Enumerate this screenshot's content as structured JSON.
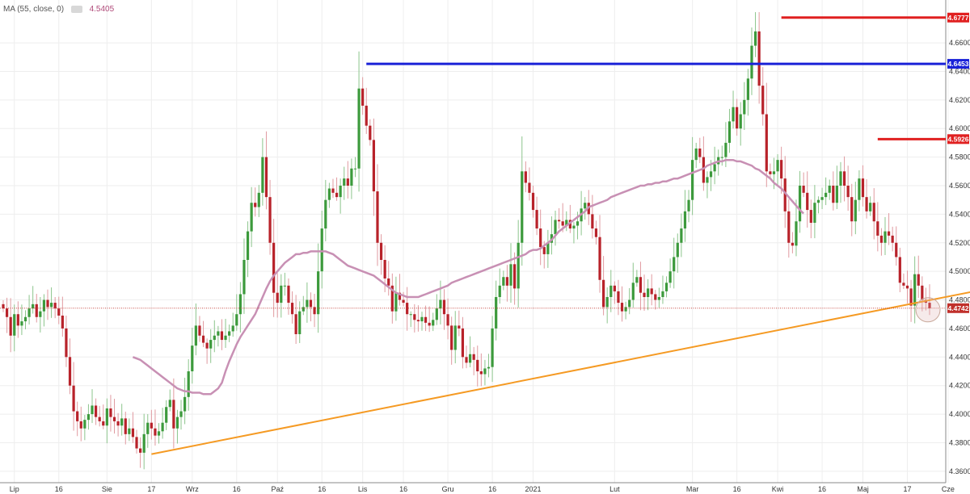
{
  "legend": {
    "indicator": "MA (55, close, 0)",
    "value": "4.5405"
  },
  "chart_data": {
    "type": "candlestick",
    "ylim": [
      4.352,
      4.69
    ],
    "y_ticks": [
      4.36,
      4.38,
      4.4,
      4.42,
      4.44,
      4.46,
      4.48,
      4.5,
      4.52,
      4.54,
      4.56,
      4.58,
      4.6,
      4.62,
      4.64,
      4.66
    ],
    "y_tick_labels": [
      "4.3600",
      "4.3800",
      "4.4000",
      "4.4200",
      "4.4400",
      "4.4600",
      "4.4800",
      "4.5000",
      "4.5200",
      "4.5400",
      "4.5600",
      "4.5800",
      "4.6000",
      "4.6200",
      "4.6400",
      "4.6600"
    ],
    "x_ticks": [
      {
        "label": "Lip",
        "i": 3
      },
      {
        "label": "16",
        "i": 15
      },
      {
        "label": "Sie",
        "i": 28
      },
      {
        "label": "17",
        "i": 40
      },
      {
        "label": "Wrz",
        "i": 51
      },
      {
        "label": "16",
        "i": 63
      },
      {
        "label": "Paź",
        "i": 74
      },
      {
        "label": "16",
        "i": 86
      },
      {
        "label": "Lis",
        "i": 97
      },
      {
        "label": "16",
        "i": 108
      },
      {
        "label": "Gru",
        "i": 120
      },
      {
        "label": "16",
        "i": 132
      },
      {
        "label": "2021",
        "i": 143
      },
      {
        "label": "Lut",
        "i": 165
      },
      {
        "label": "Mar",
        "i": 186
      },
      {
        "label": "16",
        "i": 198
      },
      {
        "label": "Kwi",
        "i": 209
      },
      {
        "label": "16",
        "i": 221
      },
      {
        "label": "Maj",
        "i": 232
      },
      {
        "label": "17",
        "i": 244
      },
      {
        "label": "Cze",
        "i": 255
      }
    ],
    "closes": [
      4.474,
      4.468,
      4.455,
      4.47,
      4.462,
      4.465,
      4.468,
      4.474,
      4.477,
      4.468,
      4.472,
      4.48,
      4.475,
      4.478,
      4.474,
      4.469,
      4.46,
      4.44,
      4.42,
      4.402,
      4.395,
      4.39,
      4.396,
      4.4,
      4.406,
      4.398,
      4.395,
      4.392,
      4.404,
      4.398,
      4.395,
      4.392,
      4.397,
      4.386,
      4.39,
      4.384,
      4.376,
      4.373,
      4.386,
      4.394,
      4.39,
      4.385,
      4.388,
      4.394,
      4.405,
      4.41,
      4.39,
      4.398,
      4.402,
      4.412,
      4.43,
      4.448,
      4.462,
      4.455,
      4.45,
      4.446,
      4.452,
      4.455,
      4.458,
      4.452,
      4.455,
      4.458,
      4.462,
      4.47,
      4.484,
      4.508,
      4.528,
      4.548,
      4.545,
      4.555,
      4.58,
      4.552,
      4.52,
      4.485,
      4.478,
      4.49,
      4.49,
      4.478,
      4.47,
      4.456,
      4.472,
      4.475,
      4.48,
      4.475,
      4.47,
      4.5,
      4.53,
      4.55,
      4.558,
      4.555,
      4.552,
      4.56,
      4.565,
      4.56,
      4.572,
      4.572,
      4.628,
      4.616,
      4.602,
      4.592,
      4.556,
      4.52,
      4.508,
      4.495,
      4.49,
      4.472,
      4.485,
      4.48,
      4.478,
      4.47,
      4.47,
      4.466,
      4.465,
      4.468,
      4.464,
      4.462,
      4.466,
      4.474,
      4.48,
      4.47,
      4.462,
      4.445,
      4.462,
      4.46,
      4.44,
      4.436,
      4.442,
      4.438,
      4.43,
      4.428,
      4.432,
      4.433,
      4.46,
      4.482,
      4.49,
      4.496,
      4.49,
      4.505,
      4.488,
      4.52,
      4.57,
      4.562,
      4.555,
      4.543,
      4.53,
      4.517,
      4.512,
      4.52,
      4.526,
      4.536,
      4.535,
      4.532,
      4.536,
      4.53,
      4.532,
      4.535,
      4.544,
      4.548,
      4.54,
      4.53,
      4.524,
      4.494,
      4.475,
      4.482,
      4.49,
      4.486,
      4.478,
      4.472,
      4.475,
      4.48,
      4.492,
      4.496,
      4.485,
      4.482,
      4.488,
      4.484,
      4.48,
      4.482,
      4.486,
      4.492,
      4.5,
      4.51,
      4.52,
      4.53,
      4.542,
      4.55,
      4.578,
      4.586,
      4.58,
      4.562,
      4.566,
      4.57,
      4.575,
      4.58,
      4.58,
      4.59,
      4.605,
      4.615,
      4.6,
      4.61,
      4.62,
      4.635,
      4.658,
      4.668,
      4.63,
      4.61,
      4.57,
      4.568,
      4.57,
      4.578,
      4.565,
      4.542,
      4.52,
      4.518,
      4.535,
      4.56,
      4.555,
      4.543,
      4.534,
      4.548,
      4.55,
      4.552,
      4.555,
      4.56,
      4.548,
      4.56,
      4.57,
      4.56,
      4.552,
      4.535,
      4.55,
      4.565,
      4.552,
      4.542,
      4.548,
      4.535,
      4.525,
      4.52,
      4.528,
      4.525,
      4.52,
      4.51,
      4.492,
      4.49,
      4.488,
      4.476,
      4.498,
      4.49,
      4.48,
      4.478,
      4.4742
    ],
    "ma_start": 35,
    "ma": [
      4.44,
      4.439,
      4.438,
      4.436,
      4.434,
      4.432,
      4.43,
      4.428,
      4.426,
      4.424,
      4.422,
      4.42,
      4.418,
      4.417,
      4.416,
      4.416,
      4.415,
      4.415,
      4.415,
      4.414,
      4.414,
      4.414,
      4.416,
      4.418,
      4.422,
      4.43,
      4.437,
      4.443,
      4.449,
      4.454,
      4.458,
      4.462,
      4.466,
      4.47,
      4.476,
      4.482,
      4.488,
      4.493,
      4.497,
      4.5,
      4.503,
      4.506,
      4.508,
      4.51,
      4.512,
      4.512,
      4.513,
      4.513,
      4.514,
      4.514,
      4.514,
      4.514,
      4.514,
      4.513,
      4.512,
      4.51,
      4.508,
      4.506,
      4.504,
      4.503,
      4.502,
      4.501,
      4.5,
      4.499,
      4.498,
      4.497,
      4.495,
      4.493,
      4.491,
      4.489,
      4.487,
      4.485,
      4.484,
      4.483,
      4.482,
      4.482,
      4.482,
      4.482,
      4.483,
      4.484,
      4.485,
      4.486,
      4.487,
      4.488,
      4.489,
      4.49,
      4.492,
      4.493,
      4.494,
      4.495,
      4.496,
      4.497,
      4.498,
      4.499,
      4.5,
      4.501,
      4.502,
      4.503,
      4.504,
      4.505,
      4.506,
      4.507,
      4.508,
      4.509,
      4.51,
      4.511,
      4.512,
      4.514,
      4.515,
      4.515,
      4.516,
      4.518,
      4.52,
      4.522,
      4.525,
      4.528,
      4.53,
      4.532,
      4.534,
      4.536,
      4.538,
      4.54,
      4.542,
      4.545,
      4.546,
      4.547,
      4.548,
      4.549,
      4.55,
      4.552,
      4.553,
      4.554,
      4.555,
      4.556,
      4.557,
      4.558,
      4.559,
      4.56,
      4.56,
      4.561,
      4.561,
      4.562,
      4.562,
      4.563,
      4.563,
      4.564,
      4.565,
      4.565,
      4.566,
      4.567,
      4.568,
      4.569,
      4.57,
      4.571,
      4.572,
      4.574,
      4.575,
      4.576,
      4.577,
      4.577,
      4.578,
      4.578,
      4.578,
      4.577,
      4.577,
      4.576,
      4.575,
      4.574,
      4.572,
      4.571,
      4.569,
      4.567,
      4.565,
      4.562,
      4.56,
      4.558,
      4.555,
      4.552,
      4.549,
      4.546,
      4.543,
      4.5405
    ]
  },
  "levels": [
    {
      "label": "4.6777",
      "value": 4.6777,
      "start_i": 210,
      "color": "#e02020"
    },
    {
      "label": "4.6453",
      "value": 4.6453,
      "start_i": 98,
      "color": "#1a22d8"
    },
    {
      "label": "4.5926",
      "value": 4.5926,
      "start_i": 236,
      "color": "#e02020"
    }
  ],
  "trendline": {
    "start": {
      "i": 40,
      "value": 4.372
    },
    "end": {
      "i": 264,
      "value": 4.487
    },
    "color": "#f59a23"
  },
  "current_price": {
    "label": "4.4742",
    "value": 4.4742,
    "color": "#c0302b"
  },
  "colors": {
    "up": "#3c9a3c",
    "down": "#b8222a",
    "ma": "#c890b4",
    "grid": "#eeeeee"
  }
}
